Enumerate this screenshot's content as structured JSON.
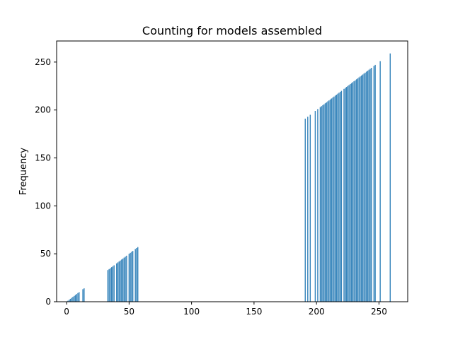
{
  "chart_data": {
    "type": "bar",
    "title": "Counting for models assembled",
    "xlabel": "",
    "ylabel": "Frequency",
    "xlim": [
      -8,
      273
    ],
    "ylim": [
      0,
      272
    ],
    "xticks": [
      0,
      50,
      100,
      150,
      200,
      250
    ],
    "yticks": [
      0,
      50,
      100,
      150,
      200,
      250
    ],
    "x_tick_labels": [
      "0",
      "50",
      "100",
      "150",
      "200",
      "250"
    ],
    "y_tick_labels": [
      "0",
      "50",
      "100",
      "150",
      "200",
      "250"
    ],
    "grid": false,
    "legend": "none",
    "bar_color": "#1f77b4",
    "x": [
      1,
      2,
      3,
      4,
      5,
      6,
      7,
      8,
      9,
      10,
      13,
      14,
      33,
      34,
      35,
      36,
      37,
      38,
      40,
      41,
      42,
      43,
      44,
      45,
      46,
      47,
      48,
      50,
      51,
      52,
      53,
      55,
      56,
      57,
      191,
      193,
      195,
      199,
      201,
      203,
      204,
      205,
      206,
      207,
      208,
      209,
      210,
      211,
      212,
      213,
      214,
      215,
      216,
      217,
      218,
      219,
      220,
      222,
      223,
      224,
      225,
      226,
      227,
      228,
      229,
      230,
      231,
      232,
      233,
      234,
      235,
      236,
      237,
      238,
      239,
      240,
      241,
      242,
      243,
      244,
      246,
      247,
      251,
      259
    ],
    "values": [
      1,
      2,
      3,
      4,
      5,
      6,
      7,
      8,
      9,
      10,
      13,
      14,
      33,
      34,
      35,
      36,
      37,
      38,
      40,
      41,
      42,
      43,
      44,
      45,
      46,
      47,
      48,
      50,
      51,
      52,
      53,
      55,
      56,
      57,
      191,
      193,
      195,
      199,
      201,
      203,
      204,
      205,
      206,
      207,
      208,
      209,
      210,
      211,
      212,
      213,
      214,
      215,
      216,
      217,
      218,
      219,
      220,
      222,
      223,
      224,
      225,
      226,
      227,
      228,
      229,
      230,
      231,
      232,
      233,
      234,
      235,
      236,
      237,
      238,
      239,
      240,
      241,
      242,
      243,
      244,
      246,
      247,
      251,
      259
    ]
  }
}
